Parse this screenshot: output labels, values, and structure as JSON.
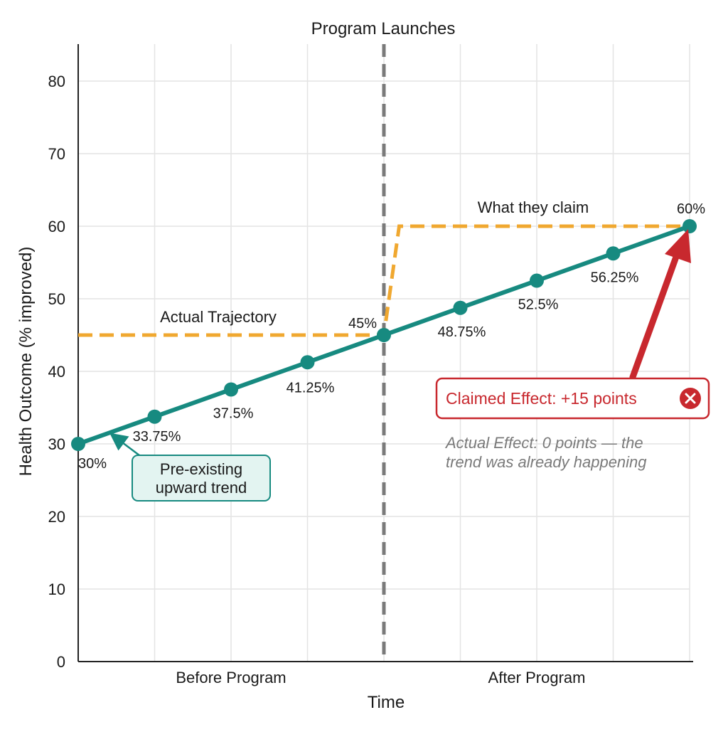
{
  "chart_data": {
    "type": "line",
    "title": "",
    "xlabel": "Time",
    "ylabel": "Health Outcome (% improved)",
    "ylim": [
      0,
      80
    ],
    "yticks": [
      0,
      10,
      20,
      30,
      40,
      50,
      60,
      70,
      80
    ],
    "x_categories": [
      "Before Program",
      "After Program"
    ],
    "grid": true,
    "event": {
      "label": "Program Launches",
      "x": 4
    },
    "series": [
      {
        "role": "actual",
        "color": "#178a80",
        "points": [
          {
            "x": 0,
            "y": 30,
            "label": "30%"
          },
          {
            "x": 1,
            "y": 33.75,
            "label": "33.75%"
          },
          {
            "x": 2,
            "y": 37.5,
            "label": "37.5%"
          },
          {
            "x": 3,
            "y": 41.25,
            "label": "41.25%"
          },
          {
            "x": 4,
            "y": 45,
            "label": "45%"
          },
          {
            "x": 5,
            "y": 48.75,
            "label": "48.75%"
          },
          {
            "x": 6,
            "y": 52.5,
            "label": "52.5%"
          },
          {
            "x": 7,
            "y": 56.25,
            "label": "56.25%"
          },
          {
            "x": 8,
            "y": 60,
            "label": "60%"
          }
        ]
      },
      {
        "role": "claimed",
        "color": "#f0a830",
        "points": [
          {
            "x": 0,
            "y": 45
          },
          {
            "x": 4,
            "y": 45
          },
          {
            "x": 4.2,
            "y": 60
          },
          {
            "x": 8,
            "y": 60
          }
        ]
      }
    ],
    "annotations": {
      "actual_trajectory": "Actual Trajectory",
      "what_they_claim": "What they claim",
      "pre_existing": [
        "Pre-existing",
        "upward trend"
      ],
      "claimed_effect": "Claimed Effect: +15 points",
      "actual_effect": [
        "Actual Effect: 0 points — the",
        "trend was already happening"
      ]
    },
    "colors": {
      "actual": "#178a80",
      "claimed": "#f0a830",
      "claim_box": "#c8282e",
      "event_line": "#7a7a7a",
      "trend_box_bg": "#e3f4f1"
    }
  }
}
